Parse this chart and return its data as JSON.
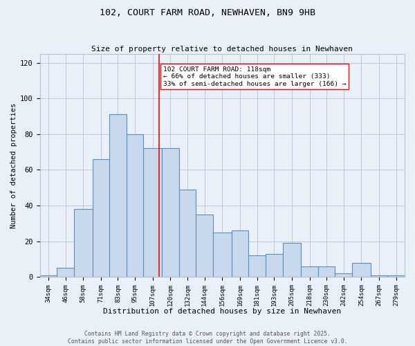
{
  "title_line1": "102, COURT FARM ROAD, NEWHAVEN, BN9 9HB",
  "title_line2": "Size of property relative to detached houses in Newhaven",
  "xlabel": "Distribution of detached houses by size in Newhaven",
  "ylabel": "Number of detached properties",
  "bin_labels": [
    "34sqm",
    "46sqm",
    "58sqm",
    "71sqm",
    "83sqm",
    "95sqm",
    "107sqm",
    "120sqm",
    "132sqm",
    "144sqm",
    "156sqm",
    "169sqm",
    "181sqm",
    "193sqm",
    "205sqm",
    "218sqm",
    "230sqm",
    "242sqm",
    "254sqm",
    "267sqm",
    "279sqm"
  ],
  "bin_edges": [
    34,
    46,
    58,
    71,
    83,
    95,
    107,
    120,
    132,
    144,
    156,
    169,
    181,
    193,
    205,
    218,
    230,
    242,
    254,
    267,
    279,
    291
  ],
  "bar_heights": [
    1,
    5,
    38,
    66,
    91,
    80,
    72,
    72,
    49,
    35,
    25,
    26,
    12,
    13,
    19,
    6,
    6,
    2,
    8,
    1,
    1
  ],
  "bar_color": "#c9d9ed",
  "bar_edge_color": "#5b8db8",
  "bar_linewidth": 0.8,
  "grid_color": "#b0c4d8",
  "background_color": "#eaf0f8",
  "vline_x": 118,
  "vline_color": "red",
  "vline_linewidth": 1.2,
  "annotation_text": "102 COURT FARM ROAD: 118sqm\n← 66% of detached houses are smaller (333)\n33% of semi-detached houses are larger (166) →",
  "annotation_box_color": "white",
  "annotation_box_edge": "red",
  "ylim": [
    0,
    125
  ],
  "yticks": [
    0,
    20,
    40,
    60,
    80,
    100,
    120
  ],
  "footer_line1": "Contains HM Land Registry data © Crown copyright and database right 2025.",
  "footer_line2": "Contains public sector information licensed under the Open Government Licence v3.0.",
  "title_fontsize": 9.5,
  "subtitle_fontsize": 8,
  "axis_label_fontsize": 8,
  "tick_fontsize": 6.5,
  "annotation_fontsize": 6.8,
  "footer_fontsize": 5.8,
  "ylabel_fontsize": 7.5
}
